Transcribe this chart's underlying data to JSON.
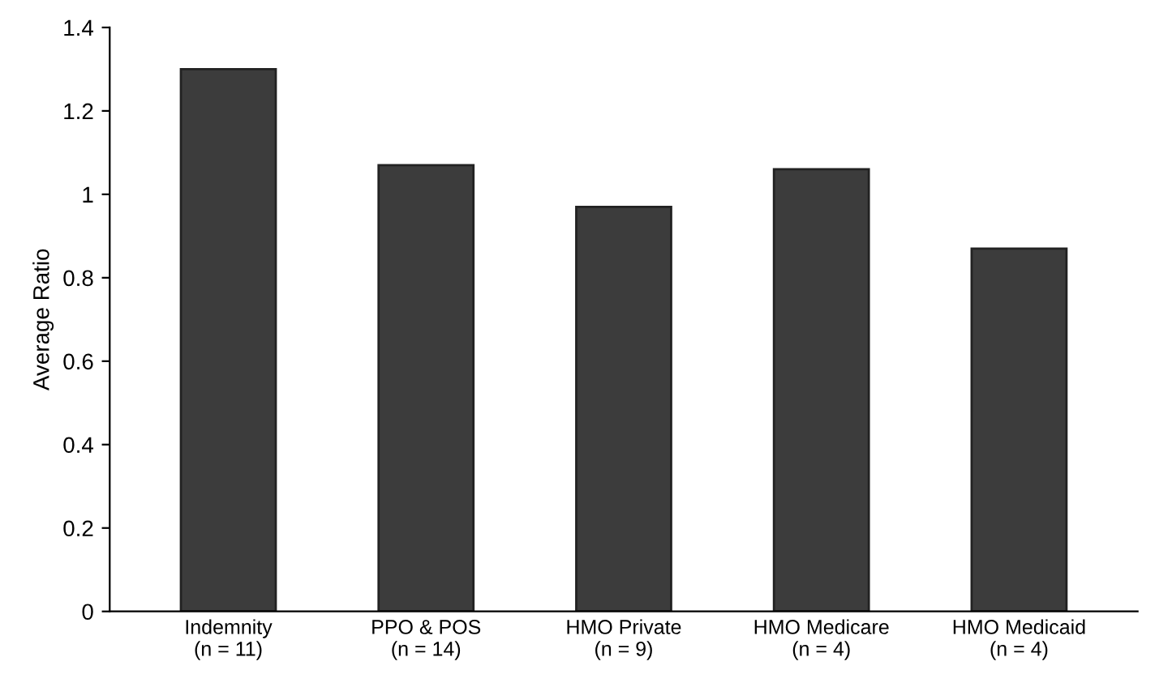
{
  "chart_data": {
    "type": "bar",
    "ylabel": "Average Ratio",
    "categories": [
      "Indemnity\n(n = 11)",
      "PPO & POS\n(n = 14)",
      "HMO Private\n(n = 9)",
      "HMO Medicare\n(n = 4)",
      "HMO Medicaid\n(n = 4)"
    ],
    "values": [
      1.3,
      1.07,
      0.97,
      1.06,
      0.87
    ],
    "color": "#3c3c3c",
    "ylim": [
      0,
      1.4
    ],
    "yticks": [
      0,
      0.2,
      0.4,
      0.6,
      0.8,
      1,
      1.2,
      1.4
    ],
    "grid": false,
    "legend": false
  }
}
